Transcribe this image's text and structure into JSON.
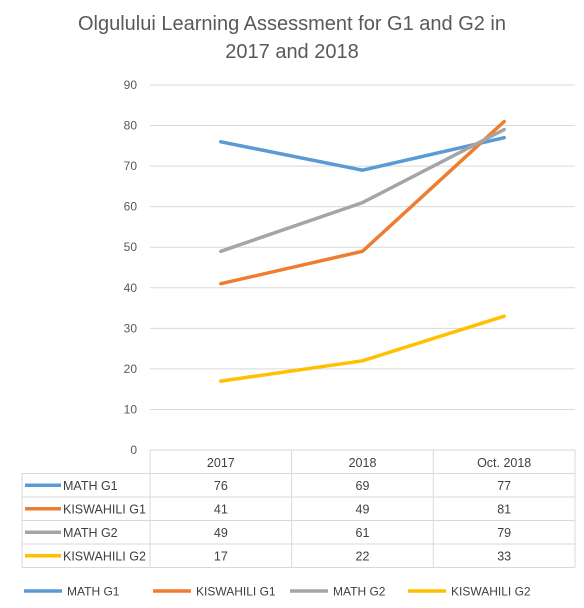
{
  "chart_data": {
    "type": "line",
    "title_lines": [
      "Olgulului Learning Assessment for G1 and G2 in",
      "2017 and 2018"
    ],
    "categories": [
      "2017",
      "2018",
      "Oct. 2018"
    ],
    "ylim": [
      0,
      90
    ],
    "yticks": [
      0,
      10,
      20,
      30,
      40,
      50,
      60,
      70,
      80,
      90
    ],
    "grid": true,
    "legend_position": "bottom",
    "data_table": true,
    "series": [
      {
        "name": "MATH G1",
        "color": "#5B9BD5",
        "values": [
          76,
          69,
          77
        ]
      },
      {
        "name": "KISWAHILI G1",
        "color": "#ED7D31",
        "values": [
          41,
          49,
          81
        ]
      },
      {
        "name": "MATH G2",
        "color": "#A5A5A5",
        "values": [
          49,
          61,
          79
        ]
      },
      {
        "name": "KISWAHILI G2",
        "color": "#FFC000",
        "values": [
          17,
          22,
          33
        ]
      }
    ]
  }
}
